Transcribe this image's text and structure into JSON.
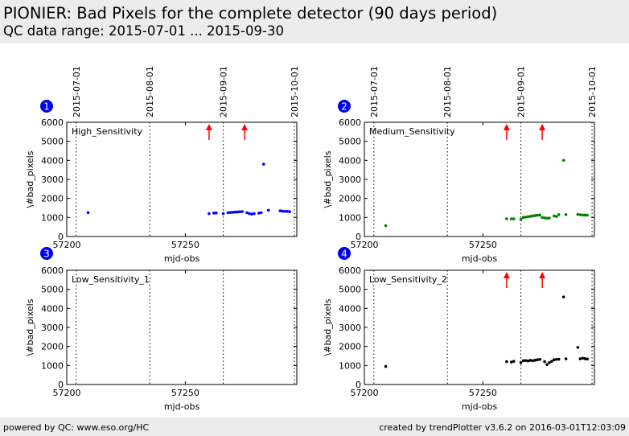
{
  "page": {
    "title": "PIONIER: Bad Pixels for the complete detector (90 days period)",
    "subtitle": "QC data range: 2015-07-01 ... 2015-09-30",
    "footer_left": "powered by QC: www.eso.org/HC",
    "footer_right": "created by trendPlotter v3.6.2 on 2016-03-01T12:03:09"
  },
  "colors": {
    "header_bg": "#ececec",
    "badge": "#0000ee",
    "arrow": "#ff0000",
    "high": "#0000ff",
    "medium": "#008000",
    "low2": "#000000"
  },
  "chart_data": [
    {
      "panel": "1",
      "type": "scatter",
      "label": "High_Sensitivity",
      "xlabel": "mjd-obs",
      "ylabel": "\\#bad_pixels",
      "xlim": [
        57200,
        57297
      ],
      "ylim": [
        0,
        6000
      ],
      "xticks": [
        57200,
        57250
      ],
      "yticks": [
        0,
        1000,
        2000,
        3000,
        4000,
        5000,
        6000
      ],
      "date_lines": [
        {
          "label": "2015-07-01",
          "x": 57204
        },
        {
          "label": "2015-08-01",
          "x": 57235
        },
        {
          "label": "2015-09-01",
          "x": 57266
        },
        {
          "label": "2015-10-01",
          "x": 57296
        }
      ],
      "arrows_x": [
        57260,
        57275
      ],
      "color": "#0000ff",
      "points": [
        [
          57209,
          1250
        ],
        [
          57260,
          1200
        ],
        [
          57262,
          1230
        ],
        [
          57263,
          1240
        ],
        [
          57266,
          1200
        ],
        [
          57268,
          1250
        ],
        [
          57269,
          1260
        ],
        [
          57270,
          1270
        ],
        [
          57271,
          1280
        ],
        [
          57272,
          1290
        ],
        [
          57273,
          1300
        ],
        [
          57274,
          1310
        ],
        [
          57276,
          1250
        ],
        [
          57277,
          1200
        ],
        [
          57278,
          1180
        ],
        [
          57279,
          1200
        ],
        [
          57281,
          1230
        ],
        [
          57282,
          1250
        ],
        [
          57283,
          3800
        ],
        [
          57285,
          1380
        ],
        [
          57290,
          1350
        ],
        [
          57291,
          1330
        ],
        [
          57292,
          1320
        ],
        [
          57293,
          1320
        ],
        [
          57294,
          1300
        ]
      ]
    },
    {
      "panel": "2",
      "type": "scatter",
      "label": "Medium_Sensitivity",
      "xlabel": "mjd-obs",
      "ylabel": "\\#bad_pixels",
      "xlim": [
        57200,
        57297
      ],
      "ylim": [
        0,
        6000
      ],
      "xticks": [
        57200,
        57250
      ],
      "yticks": [
        0,
        1000,
        2000,
        3000,
        4000,
        5000,
        6000
      ],
      "date_lines": [
        {
          "label": "2015-07-01",
          "x": 57204
        },
        {
          "label": "2015-08-01",
          "x": 57235
        },
        {
          "label": "2015-09-01",
          "x": 57266
        },
        {
          "label": "2015-10-01",
          "x": 57296
        }
      ],
      "arrows_x": [
        57260,
        57275
      ],
      "color": "#008000",
      "points": [
        [
          57209,
          570
        ],
        [
          57260,
          930
        ],
        [
          57262,
          920
        ],
        [
          57263,
          930
        ],
        [
          57266,
          900
        ],
        [
          57267,
          1000
        ],
        [
          57268,
          1020
        ],
        [
          57269,
          1040
        ],
        [
          57270,
          1060
        ],
        [
          57271,
          1080
        ],
        [
          57272,
          1100
        ],
        [
          57273,
          1120
        ],
        [
          57274,
          1130
        ],
        [
          57275,
          1000
        ],
        [
          57276,
          980
        ],
        [
          57277,
          960
        ],
        [
          57278,
          970
        ],
        [
          57280,
          1080
        ],
        [
          57281,
          1050
        ],
        [
          57282,
          1150
        ],
        [
          57284,
          4000
        ],
        [
          57285,
          1150
        ],
        [
          57290,
          1160
        ],
        [
          57291,
          1140
        ],
        [
          57292,
          1130
        ],
        [
          57293,
          1130
        ],
        [
          57294,
          1120
        ]
      ]
    },
    {
      "panel": "3",
      "type": "scatter",
      "label": "Low_Sensitivity_1",
      "xlabel": "mjd-obs",
      "ylabel": "\\#bad_pixels",
      "xlim": [
        57200,
        57297
      ],
      "ylim": [
        0,
        6000
      ],
      "xticks": [
        57200,
        57250
      ],
      "yticks": [
        0,
        1000,
        2000,
        3000,
        4000,
        5000,
        6000
      ],
      "date_lines": [
        {
          "label": "2015-07-01",
          "x": 57204
        },
        {
          "label": "2015-08-01",
          "x": 57235
        },
        {
          "label": "2015-09-01",
          "x": 57266
        },
        {
          "label": "2015-10-01",
          "x": 57296
        }
      ],
      "arrows_x": [],
      "color": "#000000",
      "points": []
    },
    {
      "panel": "4",
      "type": "scatter",
      "label": "Low_Sensitivity_2",
      "xlabel": "mjd-obs",
      "ylabel": "\\#bad_pixels",
      "xlim": [
        57200,
        57297
      ],
      "ylim": [
        0,
        6000
      ],
      "xticks": [
        57200,
        57250
      ],
      "yticks": [
        0,
        1000,
        2000,
        3000,
        4000,
        5000,
        6000
      ],
      "date_lines": [
        {
          "label": "2015-07-01",
          "x": 57204
        },
        {
          "label": "2015-08-01",
          "x": 57235
        },
        {
          "label": "2015-09-01",
          "x": 57266
        },
        {
          "label": "2015-10-01",
          "x": 57296
        }
      ],
      "arrows_x": [
        57260,
        57275
      ],
      "color": "#000000",
      "points": [
        [
          57209,
          950
        ],
        [
          57260,
          1200
        ],
        [
          57262,
          1180
        ],
        [
          57263,
          1220
        ],
        [
          57266,
          1150
        ],
        [
          57267,
          1250
        ],
        [
          57268,
          1260
        ],
        [
          57269,
          1240
        ],
        [
          57270,
          1270
        ],
        [
          57271,
          1250
        ],
        [
          57272,
          1280
        ],
        [
          57273,
          1300
        ],
        [
          57274,
          1320
        ],
        [
          57276,
          1200
        ],
        [
          57277,
          1050
        ],
        [
          57278,
          1150
        ],
        [
          57279,
          1220
        ],
        [
          57280,
          1300
        ],
        [
          57281,
          1320
        ],
        [
          57282,
          1330
        ],
        [
          57284,
          4600
        ],
        [
          57285,
          1350
        ],
        [
          57290,
          1950
        ],
        [
          57291,
          1350
        ],
        [
          57292,
          1380
        ],
        [
          57293,
          1360
        ],
        [
          57294,
          1340
        ]
      ]
    }
  ]
}
